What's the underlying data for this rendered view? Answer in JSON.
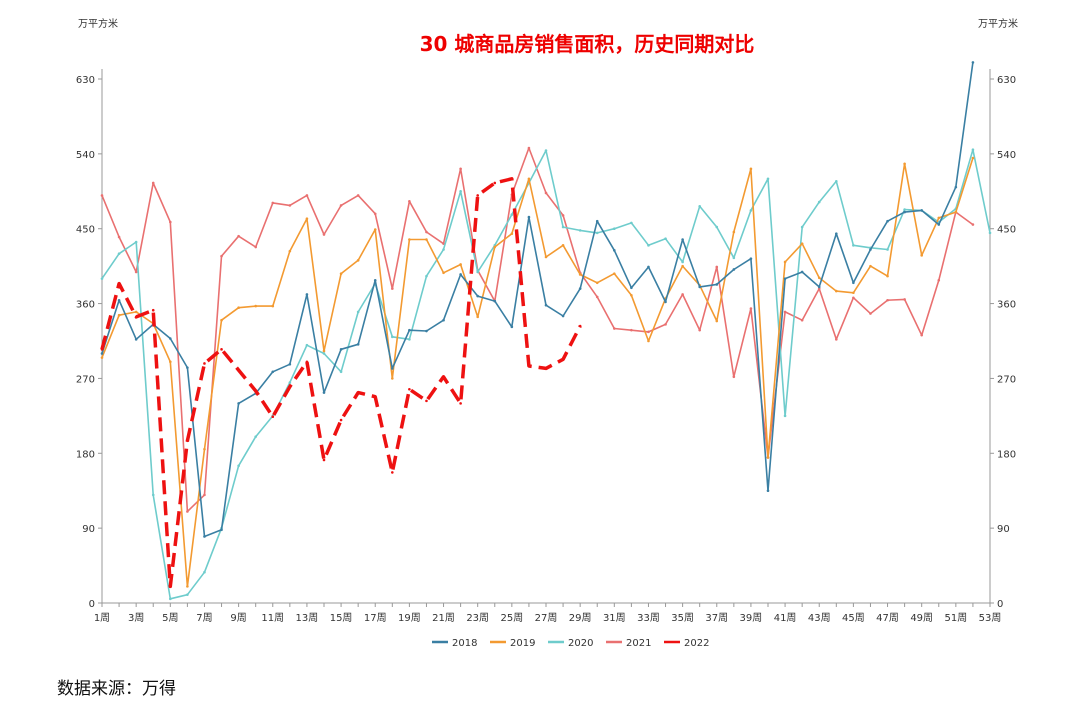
{
  "chart_data": {
    "type": "line",
    "title": "30 城商品房销售面积，历史同期对比",
    "ylabel_left": "万平方米",
    "ylabel_right": "万平方米",
    "ylim": [
      0,
      630
    ],
    "yticks": [
      0,
      90,
      180,
      270,
      360,
      450,
      540,
      630
    ],
    "x": [
      1,
      2,
      3,
      4,
      5,
      6,
      7,
      8,
      9,
      10,
      11,
      12,
      13,
      14,
      15,
      16,
      17,
      18,
      19,
      20,
      21,
      22,
      23,
      24,
      25,
      26,
      27,
      28,
      29,
      30,
      31,
      32,
      33,
      34,
      35,
      36,
      37,
      38,
      39,
      40,
      41,
      42,
      43,
      44,
      45,
      46,
      47,
      48,
      49,
      50,
      51,
      52,
      53
    ],
    "xtick_labels": [
      "1周",
      "3周",
      "5周",
      "7周",
      "9周",
      "11周",
      "13周",
      "15周",
      "17周",
      "19周",
      "21周",
      "23周",
      "25周",
      "27周",
      "29周",
      "31周",
      "33周",
      "35周",
      "37周",
      "39周",
      "41周",
      "43周",
      "45周",
      "47周",
      "49周",
      "51周",
      "53周"
    ],
    "grid": false,
    "legend_position": "bottom",
    "series": [
      {
        "name": "2018",
        "color": "#3a7fa3",
        "dash": false,
        "values": [
          300,
          364,
          317,
          335,
          318,
          283,
          80,
          88,
          240,
          252,
          278,
          287,
          371,
          253,
          305,
          311,
          388,
          282,
          328,
          327,
          340,
          395,
          369,
          363,
          332,
          464,
          358,
          345,
          378,
          459,
          424,
          379,
          404,
          362,
          437,
          380,
          383,
          401,
          414,
          135,
          390,
          398,
          380,
          444,
          385,
          425,
          459,
          470,
          472,
          455,
          500,
          650,
          null
        ]
      },
      {
        "name": "2019",
        "color": "#f39a31",
        "dash": false,
        "values": [
          295,
          346,
          350,
          336,
          290,
          20,
          185,
          340,
          355,
          357,
          357,
          423,
          462,
          303,
          396,
          412,
          449,
          270,
          437,
          437,
          397,
          407,
          344,
          428,
          444,
          510,
          416,
          430,
          395,
          385,
          396,
          370,
          315,
          366,
          405,
          382,
          339,
          446,
          522,
          175,
          410,
          432,
          391,
          375,
          373,
          405,
          393,
          528,
          418,
          463,
          470,
          535,
          null
        ]
      },
      {
        "name": "2020",
        "color": "#6ecccc",
        "dash": false,
        "values": [
          390,
          420,
          434,
          130,
          5,
          10,
          37,
          90,
          165,
          200,
          225,
          265,
          310,
          300,
          278,
          350,
          384,
          320,
          317,
          393,
          425,
          495,
          398,
          430,
          467,
          505,
          544,
          452,
          448,
          445,
          450,
          457,
          430,
          438,
          410,
          477,
          452,
          415,
          472,
          510,
          225,
          452,
          482,
          507,
          430,
          427,
          425,
          473,
          472,
          458,
          474,
          545,
          445
        ]
      },
      {
        "name": "2021",
        "color": "#e97070",
        "dash": false,
        "values": [
          490,
          440,
          398,
          505,
          458,
          110,
          130,
          417,
          441,
          428,
          481,
          478,
          490,
          443,
          478,
          490,
          468,
          378,
          483,
          446,
          432,
          522,
          400,
          363,
          491,
          547,
          493,
          466,
          397,
          368,
          330,
          328,
          326,
          335,
          371,
          328,
          404,
          272,
          354,
          175,
          350,
          340,
          378,
          317,
          367,
          348,
          364,
          365,
          322,
          388,
          470,
          455,
          null
        ]
      },
      {
        "name": "2022",
        "color": "#ee1111",
        "dash": true,
        "values": [
          305,
          384,
          344,
          352,
          20,
          195,
          288,
          305,
          280,
          255,
          224,
          260,
          290,
          172,
          220,
          253,
          248,
          157,
          257,
          243,
          272,
          240,
          490,
          505,
          510,
          285,
          282,
          293,
          333,
          null,
          null,
          null,
          null,
          null,
          null,
          null,
          null,
          null,
          null,
          null,
          null,
          null,
          null,
          null,
          null,
          null,
          null,
          null,
          null,
          null,
          null,
          null,
          null
        ]
      }
    ]
  },
  "source": "数据来源：万得"
}
